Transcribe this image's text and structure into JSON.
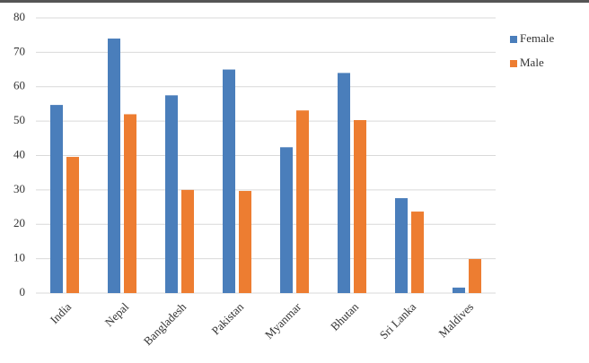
{
  "chart_data": {
    "type": "bar",
    "categories": [
      "India",
      "Nepal",
      "Bangladesh",
      "Pakistan",
      "Myanmar",
      "Bhutan",
      "Sri Lanka",
      "Maldives"
    ],
    "series": [
      {
        "name": "Female",
        "color": "#4a7ebb",
        "values": [
          54.7,
          74,
          57.5,
          65,
          42.4,
          64,
          27.6,
          1.6
        ]
      },
      {
        "name": "Male",
        "color": "#ed7d31",
        "values": [
          39.6,
          52,
          30,
          29.7,
          53.1,
          50.3,
          23.7,
          9.9
        ]
      }
    ],
    "ylim": [
      0,
      80
    ],
    "yticks": [
      0,
      10,
      20,
      30,
      40,
      50,
      60,
      70,
      80
    ],
    "grid": true,
    "legend": "right"
  }
}
